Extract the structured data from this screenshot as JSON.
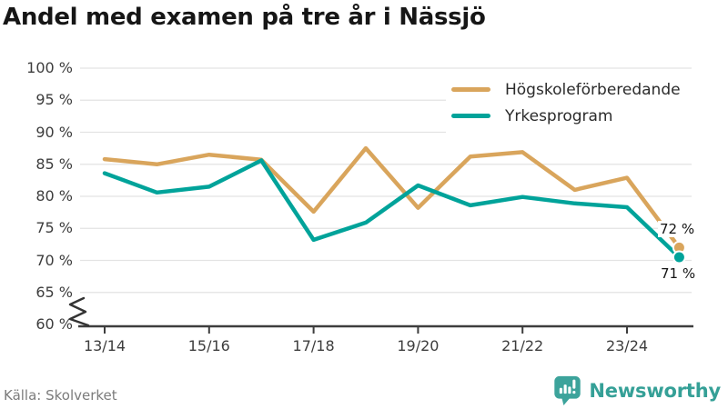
{
  "header": {
    "title": "Andel med examen på tre år i Nässjö"
  },
  "chart_data": {
    "type": "line",
    "title": "Andel med examen på tre år i Nässjö",
    "categories": [
      "13/14",
      "14/15",
      "15/16",
      "16/17",
      "17/18",
      "18/19",
      "19/20",
      "20/21",
      "21/22",
      "22/23",
      "23/24",
      "24/25"
    ],
    "x_tick_labels": [
      "13/14",
      "15/16",
      "17/18",
      "19/20",
      "21/22",
      "23/24"
    ],
    "y_tick_values": [
      100,
      95,
      90,
      85,
      80,
      75,
      70,
      65,
      60
    ],
    "y_tick_labels": [
      "100 %",
      "95 %",
      "90 %",
      "85 %",
      "80 %",
      "75 %",
      "70 %",
      "65 %",
      "60 %"
    ],
    "ylim": [
      60,
      100
    ],
    "axis_break_at_bottom": true,
    "grid": "horizontal",
    "legend_position": "top-right",
    "series": [
      {
        "name": "Högskoleförberedande",
        "color": "#D9A55C",
        "values": [
          85.8,
          85.0,
          86.5,
          85.7,
          77.6,
          87.5,
          78.2,
          86.2,
          86.9,
          81.0,
          82.9,
          72.0
        ],
        "end_label": "72 %"
      },
      {
        "name": "Yrkesprogram",
        "color": "#00A39A",
        "values": [
          83.6,
          80.6,
          81.5,
          85.6,
          73.2,
          75.9,
          81.7,
          78.6,
          79.9,
          78.9,
          78.3,
          70.5
        ],
        "end_label": "71 %"
      }
    ]
  },
  "footer": {
    "source": "Källa: Skolverket",
    "brand": "Newsworthy",
    "brand_color": "#35a097"
  },
  "icons": {
    "brand_icon": "bar-chart-speech-bubble"
  },
  "colors": {
    "grid": "#e3e3e3",
    "axis": "#3d3d3d",
    "title": "#161616",
    "tick_label": "#3d3d3d",
    "source_text": "#7c7c7c"
  }
}
